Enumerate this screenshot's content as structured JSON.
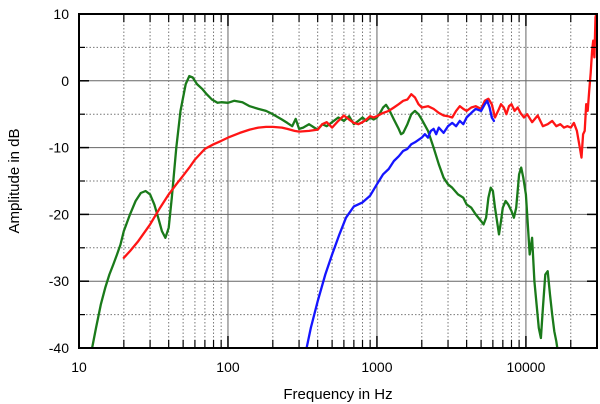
{
  "chart_data": {
    "type": "line",
    "xlabel": "Frequency in Hz",
    "ylabel": "Amplitude in dB",
    "x_scale": "log",
    "xlim": [
      10,
      30000
    ],
    "ylim": [
      -40,
      10
    ],
    "grid": true,
    "x_ticks": [
      {
        "value": 10,
        "label": "10"
      },
      {
        "value": 100,
        "label": "100"
      },
      {
        "value": 1000,
        "label": "1000"
      },
      {
        "value": 10000,
        "label": "10000"
      }
    ],
    "y_ticks": [
      {
        "value": 10,
        "label": "10"
      },
      {
        "value": 0,
        "label": "0"
      },
      {
        "value": -10,
        "label": "-10"
      },
      {
        "value": -20,
        "label": "-20"
      },
      {
        "value": -30,
        "label": "-30"
      },
      {
        "value": -40,
        "label": "-40"
      }
    ],
    "series": [
      {
        "color": "#1a7a1a",
        "points": [
          [
            12,
            -41
          ],
          [
            13,
            -37
          ],
          [
            14,
            -33.5
          ],
          [
            15,
            -31
          ],
          [
            16,
            -29
          ],
          [
            17,
            -27.5
          ],
          [
            18,
            -26
          ],
          [
            19,
            -24.5
          ],
          [
            20,
            -22.5
          ],
          [
            22,
            -20
          ],
          [
            24,
            -18
          ],
          [
            26,
            -16.8
          ],
          [
            28,
            -16.5
          ],
          [
            30,
            -17
          ],
          [
            32,
            -18.5
          ],
          [
            34,
            -20.5
          ],
          [
            36,
            -22.5
          ],
          [
            38,
            -23.5
          ],
          [
            40,
            -22
          ],
          [
            42,
            -17.5
          ],
          [
            45,
            -10
          ],
          [
            48,
            -4.5
          ],
          [
            52,
            -0.5
          ],
          [
            55,
            0.7
          ],
          [
            58,
            0.5
          ],
          [
            62,
            -0.5
          ],
          [
            67,
            -1.2
          ],
          [
            72,
            -2
          ],
          [
            78,
            -2.8
          ],
          [
            85,
            -3.3
          ],
          [
            90,
            -3.2
          ],
          [
            100,
            -3.3
          ],
          [
            110,
            -3
          ],
          [
            125,
            -3.2
          ],
          [
            140,
            -3.8
          ],
          [
            160,
            -4.2
          ],
          [
            180,
            -4.5
          ],
          [
            200,
            -5
          ],
          [
            230,
            -5.8
          ],
          [
            250,
            -6.3
          ],
          [
            270,
            -6.8
          ],
          [
            285,
            -5.7
          ],
          [
            300,
            -7.2
          ],
          [
            320,
            -7
          ],
          [
            350,
            -6.5
          ],
          [
            380,
            -7
          ],
          [
            400,
            -7.3
          ],
          [
            430,
            -6.5
          ],
          [
            460,
            -6.8
          ],
          [
            500,
            -6.2
          ],
          [
            550,
            -5.5
          ],
          [
            600,
            -6
          ],
          [
            650,
            -5.3
          ],
          [
            700,
            -6.5
          ],
          [
            750,
            -6
          ],
          [
            800,
            -5.5
          ],
          [
            850,
            -6
          ],
          [
            900,
            -5.5
          ],
          [
            950,
            -5.8
          ],
          [
            1000,
            -5.5
          ],
          [
            1050,
            -4.8
          ],
          [
            1100,
            -4
          ],
          [
            1150,
            -3.6
          ],
          [
            1200,
            -4.2
          ],
          [
            1300,
            -5.8
          ],
          [
            1400,
            -7.2
          ],
          [
            1450,
            -8
          ],
          [
            1500,
            -7.8
          ],
          [
            1600,
            -6.5
          ],
          [
            1700,
            -5
          ],
          [
            1800,
            -4.5
          ],
          [
            1900,
            -5
          ],
          [
            2000,
            -5.8
          ],
          [
            2200,
            -7.5
          ],
          [
            2400,
            -10
          ],
          [
            2600,
            -12.5
          ],
          [
            2800,
            -14.5
          ],
          [
            3000,
            -15.5
          ],
          [
            3200,
            -16
          ],
          [
            3500,
            -17
          ],
          [
            3800,
            -17.5
          ],
          [
            4000,
            -18.5
          ],
          [
            4300,
            -19
          ],
          [
            4600,
            -20
          ],
          [
            5000,
            -21
          ],
          [
            5200,
            -21.5
          ],
          [
            5400,
            -20.5
          ],
          [
            5600,
            -17.5
          ],
          [
            5800,
            -16
          ],
          [
            6000,
            -16.5
          ],
          [
            6200,
            -19
          ],
          [
            6400,
            -21
          ],
          [
            6600,
            -23
          ],
          [
            6800,
            -21
          ],
          [
            7000,
            -19
          ],
          [
            7300,
            -18
          ],
          [
            7600,
            -18.5
          ],
          [
            8000,
            -19.5
          ],
          [
            8300,
            -20.5
          ],
          [
            8600,
            -19
          ],
          [
            9000,
            -14
          ],
          [
            9300,
            -13
          ],
          [
            9600,
            -14.5
          ],
          [
            10000,
            -17
          ],
          [
            10300,
            -21.5
          ],
          [
            10600,
            -26
          ],
          [
            11000,
            -23.5
          ],
          [
            11400,
            -30
          ],
          [
            11800,
            -33.5
          ],
          [
            12200,
            -37
          ],
          [
            12600,
            -38.5
          ],
          [
            13000,
            -34
          ],
          [
            13500,
            -29
          ],
          [
            14000,
            -28.5
          ],
          [
            14500,
            -32
          ],
          [
            15000,
            -35
          ],
          [
            15500,
            -37.5
          ],
          [
            16000,
            -39
          ],
          [
            16500,
            -41
          ]
        ]
      },
      {
        "color": "#ff1515",
        "points": [
          [
            20,
            -26.5
          ],
          [
            22,
            -25.5
          ],
          [
            25,
            -24
          ],
          [
            30,
            -21.5
          ],
          [
            35,
            -19
          ],
          [
            40,
            -17
          ],
          [
            45,
            -15.5
          ],
          [
            50,
            -14.2
          ],
          [
            55,
            -13
          ],
          [
            60,
            -11.8
          ],
          [
            70,
            -10.2
          ],
          [
            80,
            -9.5
          ],
          [
            90,
            -9
          ],
          [
            100,
            -8.5
          ],
          [
            120,
            -7.8
          ],
          [
            140,
            -7.3
          ],
          [
            160,
            -7
          ],
          [
            180,
            -6.9
          ],
          [
            200,
            -6.9
          ],
          [
            230,
            -7
          ],
          [
            250,
            -7.2
          ],
          [
            280,
            -7.5
          ],
          [
            300,
            -7.6
          ],
          [
            350,
            -7.5
          ],
          [
            400,
            -7.3
          ],
          [
            430,
            -6.5
          ],
          [
            460,
            -6.2
          ],
          [
            500,
            -7
          ],
          [
            550,
            -6
          ],
          [
            600,
            -5.2
          ],
          [
            650,
            -5.8
          ],
          [
            700,
            -6.3
          ],
          [
            750,
            -6.5
          ],
          [
            800,
            -6.2
          ],
          [
            850,
            -5.8
          ],
          [
            900,
            -5.3
          ],
          [
            950,
            -5.5
          ],
          [
            1000,
            -5.3
          ],
          [
            1100,
            -4.8
          ],
          [
            1200,
            -4.5
          ],
          [
            1300,
            -4
          ],
          [
            1400,
            -3.5
          ],
          [
            1500,
            -3
          ],
          [
            1600,
            -2.8
          ],
          [
            1700,
            -2
          ],
          [
            1800,
            -2.5
          ],
          [
            1900,
            -3.5
          ],
          [
            2000,
            -4
          ],
          [
            2200,
            -3.8
          ],
          [
            2400,
            -4.2
          ],
          [
            2600,
            -4.8
          ],
          [
            2800,
            -5.2
          ],
          [
            3000,
            -5.3
          ],
          [
            3200,
            -5.5
          ],
          [
            3400,
            -4.5
          ],
          [
            3600,
            -3.8
          ],
          [
            3800,
            -4.2
          ],
          [
            4000,
            -4.5
          ],
          [
            4300,
            -4
          ],
          [
            4600,
            -3.8
          ],
          [
            5000,
            -4.2
          ],
          [
            5300,
            -3
          ],
          [
            5600,
            -2.7
          ],
          [
            5900,
            -3.5
          ],
          [
            6200,
            -5.5
          ],
          [
            6500,
            -4.5
          ],
          [
            6800,
            -3.5
          ],
          [
            7100,
            -4
          ],
          [
            7400,
            -5
          ],
          [
            7700,
            -3.8
          ],
          [
            8000,
            -3.5
          ],
          [
            8400,
            -4.5
          ],
          [
            8800,
            -4
          ],
          [
            9200,
            -4.8
          ],
          [
            9700,
            -5.5
          ],
          [
            10200,
            -5
          ],
          [
            11000,
            -6.2
          ],
          [
            12000,
            -5.2
          ],
          [
            13000,
            -6.8
          ],
          [
            14000,
            -6.5
          ],
          [
            15000,
            -6
          ],
          [
            16000,
            -6.8
          ],
          [
            17000,
            -6.5
          ],
          [
            18000,
            -7
          ],
          [
            19000,
            -6.8
          ],
          [
            20000,
            -7
          ],
          [
            21000,
            -6.3
          ],
          [
            22000,
            -7.5
          ],
          [
            23000,
            -10
          ],
          [
            23600,
            -11.5
          ],
          [
            24200,
            -8
          ],
          [
            24800,
            -7.5
          ],
          [
            25400,
            -3.5
          ],
          [
            26000,
            -4.5
          ],
          [
            26600,
            -1.5
          ],
          [
            27200,
            1.2
          ],
          [
            27800,
            4.5
          ],
          [
            28300,
            6
          ],
          [
            28800,
            3.5
          ],
          [
            29300,
            9.5
          ],
          [
            29700,
            10
          ]
        ]
      },
      {
        "color": "#1515ff",
        "points": [
          [
            330,
            -41
          ],
          [
            360,
            -37
          ],
          [
            400,
            -33
          ],
          [
            450,
            -29
          ],
          [
            500,
            -26
          ],
          [
            560,
            -23
          ],
          [
            620,
            -20.5
          ],
          [
            700,
            -18.8
          ],
          [
            800,
            -18.2
          ],
          [
            900,
            -17.2
          ],
          [
            1000,
            -15.5
          ],
          [
            1100,
            -14
          ],
          [
            1200,
            -13.2
          ],
          [
            1300,
            -12
          ],
          [
            1400,
            -11.3
          ],
          [
            1500,
            -10.5
          ],
          [
            1600,
            -10.2
          ],
          [
            1700,
            -9.5
          ],
          [
            1800,
            -9.2
          ],
          [
            2000,
            -8.5
          ],
          [
            2100,
            -8
          ],
          [
            2200,
            -8.5
          ],
          [
            2300,
            -7.5
          ],
          [
            2400,
            -7.2
          ],
          [
            2500,
            -8
          ],
          [
            2600,
            -7
          ],
          [
            2800,
            -7.8
          ],
          [
            3000,
            -6.8
          ],
          [
            3200,
            -6.3
          ],
          [
            3400,
            -6.8
          ],
          [
            3600,
            -6
          ],
          [
            3800,
            -6.5
          ],
          [
            4000,
            -5.5
          ],
          [
            4300,
            -4.8
          ],
          [
            4600,
            -4.2
          ],
          [
            5000,
            -4.5
          ],
          [
            5300,
            -3.5
          ],
          [
            5500,
            -3
          ],
          [
            5700,
            -4
          ],
          [
            5900,
            -5.5
          ],
          [
            6100,
            -6
          ]
        ]
      }
    ]
  }
}
